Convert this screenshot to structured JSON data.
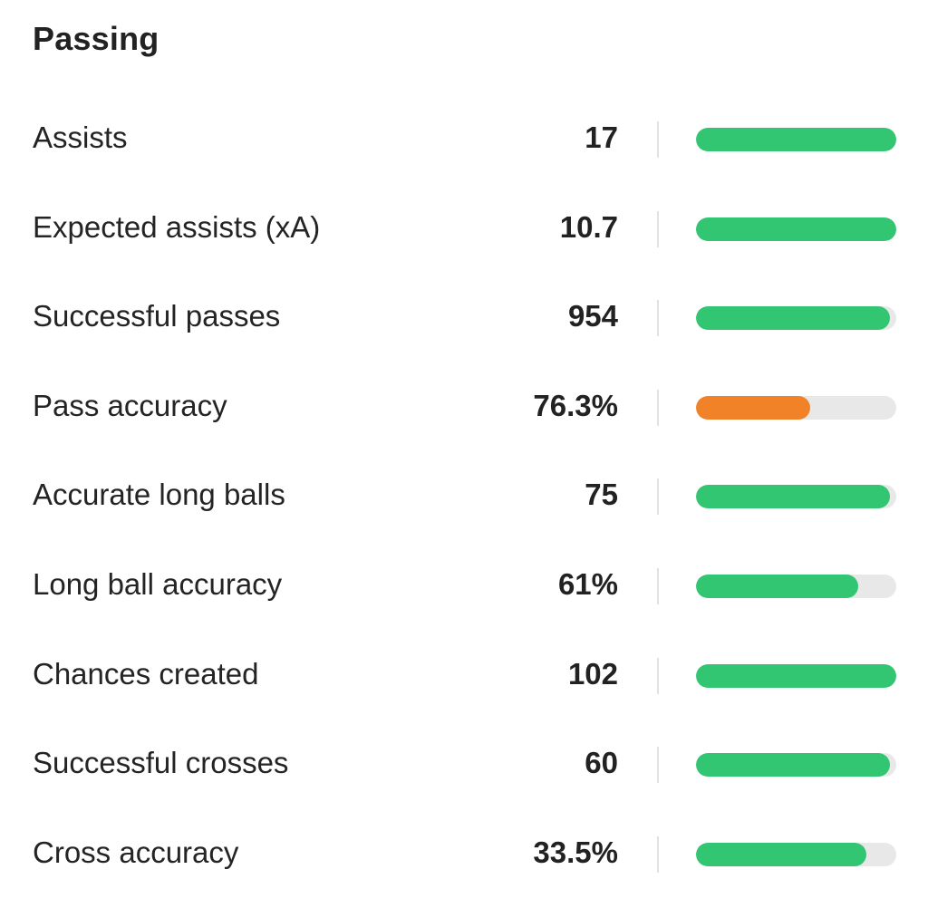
{
  "section": {
    "title": "Passing"
  },
  "colors": {
    "good": "#33c672",
    "average": "#f28228",
    "track": "#e8e8e8"
  },
  "stats": [
    {
      "label": "Assists",
      "value": "17",
      "percentile": 1.0,
      "rating": "good"
    },
    {
      "label": "Expected assists (xA)",
      "value": "10.7",
      "percentile": 1.0,
      "rating": "good"
    },
    {
      "label": "Successful passes",
      "value": "954",
      "percentile": 0.97,
      "rating": "good"
    },
    {
      "label": "Pass accuracy",
      "value": "76.3%",
      "percentile": 0.57,
      "rating": "average"
    },
    {
      "label": "Accurate long balls",
      "value": "75",
      "percentile": 0.97,
      "rating": "good"
    },
    {
      "label": "Long ball accuracy",
      "value": "61%",
      "percentile": 0.81,
      "rating": "good"
    },
    {
      "label": "Chances created",
      "value": "102",
      "percentile": 1.0,
      "rating": "good"
    },
    {
      "label": "Successful crosses",
      "value": "60",
      "percentile": 0.97,
      "rating": "good"
    },
    {
      "label": "Cross accuracy",
      "value": "33.5%",
      "percentile": 0.85,
      "rating": "good"
    }
  ]
}
